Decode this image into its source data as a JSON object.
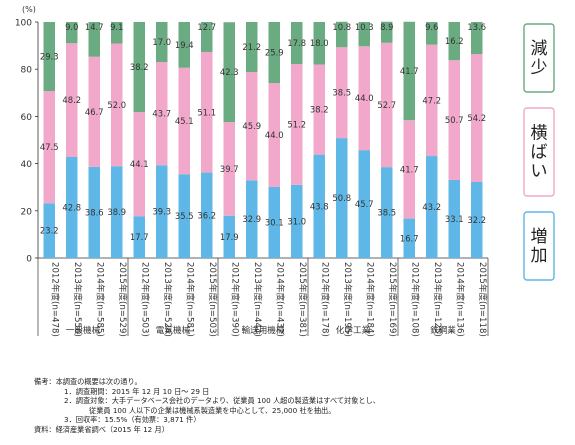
{
  "chart_data": {
    "type": "bar",
    "stacked": true,
    "y_unit": "(%)",
    "ylim": [
      0,
      100
    ],
    "yticks": [
      0,
      20,
      40,
      60,
      80,
      100
    ],
    "grid": false,
    "categories": [
      "2012年度(n=478)",
      "2013年度(n=556)",
      "2014年度(n=585)",
      "2015年度(n=529)",
      "2012年度(n=503)",
      "2013年度(n=524)",
      "2014年度(n=581)",
      "2015年度(n=503)",
      "2012年度(n=390)",
      "2013年度(n=444)",
      "2014年度(n=432)",
      "2015年度(n=381)",
      "2012年度(n=178)",
      "2013年度(n=195)",
      "2014年度(n=184)",
      "2015年度(n=169)",
      "2012年度(n=108)",
      "2013年度(n=125)",
      "2014年度(n=136)",
      "2015年度(n=118)"
    ],
    "groups": [
      "一般機械",
      "電気機械",
      "輸送用機械",
      "化学工業",
      "鉄鋼業"
    ],
    "series": [
      {
        "name": "増加",
        "color": "#5eb7e6",
        "values": [
          23.2,
          42.8,
          38.6,
          38.9,
          17.7,
          39.3,
          35.5,
          36.2,
          17.9,
          32.9,
          30.1,
          31.0,
          43.8,
          50.8,
          45.7,
          38.5,
          16.7,
          43.2,
          33.1,
          32.2
        ]
      },
      {
        "name": "横ばい",
        "color": "#f1a8cb",
        "values": [
          47.5,
          48.2,
          46.7,
          52.0,
          44.1,
          43.7,
          45.1,
          51.1,
          39.7,
          45.9,
          44.0,
          51.2,
          38.2,
          38.5,
          44.0,
          52.7,
          41.7,
          47.2,
          50.7,
          54.2
        ]
      },
      {
        "name": "減少",
        "color": "#6aab82",
        "values": [
          29.3,
          9.0,
          14.7,
          9.1,
          38.2,
          17.0,
          19.4,
          12.7,
          42.3,
          21.2,
          25.9,
          17.8,
          18.0,
          10.8,
          10.3,
          8.9,
          41.7,
          9.6,
          16.2,
          13.6
        ]
      }
    ]
  },
  "notes": {
    "label": "備考：本調査の概要は次の通り。",
    "item1": "1．調査期間：2015 年 12 月 10 日～ 29 日",
    "item2": "2．調査対象：大手データベース会社のデータより、従業員 100 人超の製造業はすべて対象とし、",
    "item2b": "従業員 100 人以下の企業は機械系製造業を中心として、25,000 社を抽出。",
    "item3": "3．回収率：15.5%（有効票：3,871 件）",
    "source": "資料：経済産業省調べ（2015 年 12 月）"
  }
}
